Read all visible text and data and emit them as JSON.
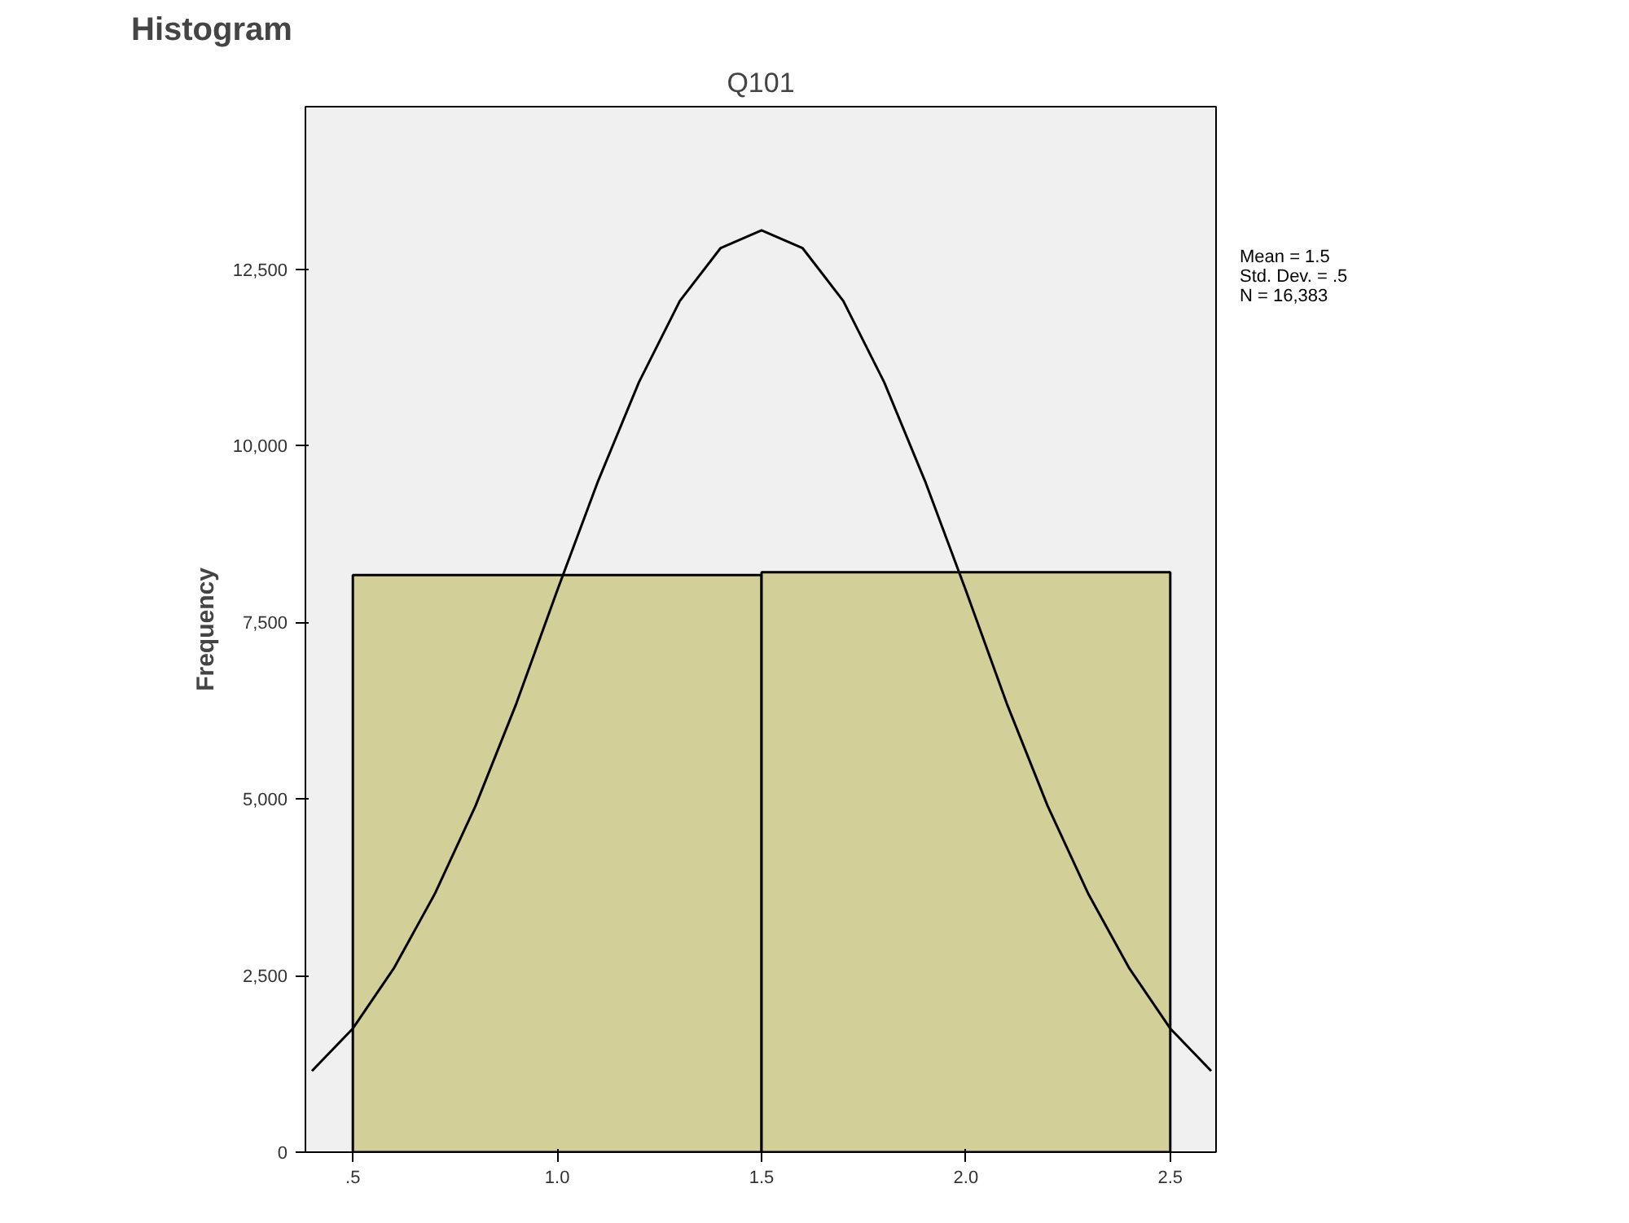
{
  "chart_data": {
    "type": "histogram",
    "title": "Histogram",
    "subtitle": "Q101",
    "ylabel": "Frequency",
    "bins": [
      0.5,
      1.5,
      2.5
    ],
    "values": [
      8170,
      8210
    ],
    "color": "#d3cf98",
    "series": [
      {
        "type": "line",
        "color": "#000000",
        "x": [
          0.4,
          0.5,
          0.6,
          0.7,
          0.8,
          0.9,
          1.0,
          1.1,
          1.2,
          1.3,
          1.4,
          1.5,
          1.6,
          1.7,
          1.8,
          1.9,
          2.0,
          2.1,
          2.2,
          2.3,
          2.4,
          2.5,
          2.6
        ],
        "values": [
          1150,
          1750,
          2600,
          3650,
          4900,
          6350,
          7950,
          9500,
          10900,
          12050,
          12800,
          13050,
          12800,
          12050,
          10900,
          9500,
          7950,
          6350,
          4900,
          3650,
          2600,
          1750,
          1150
        ]
      }
    ],
    "xlim": [
      0.384,
      2.612
    ],
    "ylim": [
      0,
      14800
    ],
    "xticks": [
      {
        "value": 0.5,
        "label": ".5"
      },
      {
        "value": 1.0,
        "label": "1.0"
      },
      {
        "value": 1.5,
        "label": "1.5"
      },
      {
        "value": 2.0,
        "label": "2.0"
      },
      {
        "value": 2.5,
        "label": "2.5"
      }
    ],
    "yticks": [
      0,
      {
        "value": 2500,
        "label": "2,500"
      },
      {
        "value": 5000,
        "label": "5,000"
      },
      {
        "value": 7500,
        "label": "7,500"
      },
      {
        "value": 10000,
        "label": "10,000"
      },
      {
        "value": 12500,
        "label": "12,500"
      }
    ],
    "annotations": [
      "Mean = 1.5",
      "Std. Dev. = .5",
      "N = 16,383"
    ]
  }
}
